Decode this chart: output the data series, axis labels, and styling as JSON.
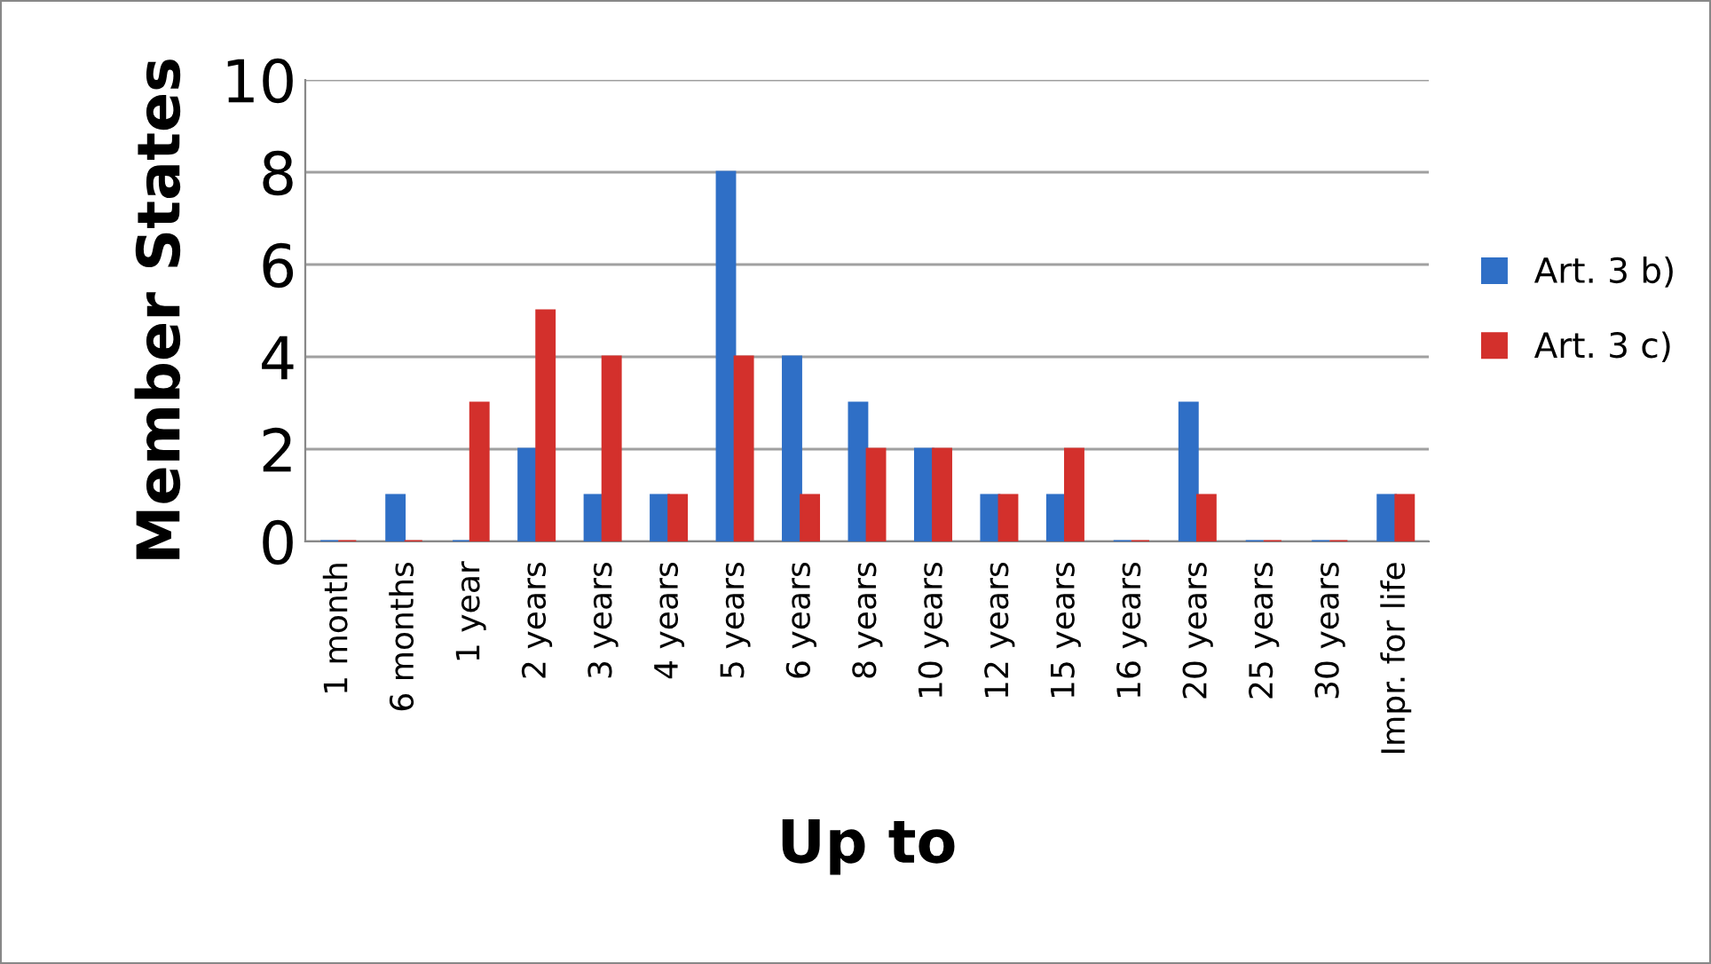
{
  "chart_data": {
    "type": "bar",
    "xlabel": "Up to",
    "ylabel": "Member States",
    "categories": [
      "1 month",
      "6 months",
      "1 year",
      "2 years",
      "3 years",
      "4 years",
      "5 years",
      "6 years",
      "8 years",
      "10 years",
      "12 years",
      "15 years",
      "16 years",
      "20 years",
      "25 years",
      "30 years",
      "Impr. for life"
    ],
    "series": [
      {
        "name": "Art. 3 b)",
        "color": "#2f6fc6",
        "values": [
          0,
          1,
          0,
          2,
          1,
          1,
          8,
          4,
          3,
          2,
          1,
          1,
          0,
          3,
          0,
          0,
          1
        ]
      },
      {
        "name": "Art. 3 c)",
        "color": "#d3302c",
        "values": [
          0,
          0,
          3,
          5,
          4,
          1,
          4,
          1,
          2,
          2,
          1,
          2,
          0,
          1,
          0,
          0,
          1
        ]
      }
    ],
    "ylim": [
      0,
      10
    ],
    "yticks": [
      0,
      2,
      4,
      6,
      8,
      10
    ],
    "grid": "y",
    "legend": "right"
  }
}
